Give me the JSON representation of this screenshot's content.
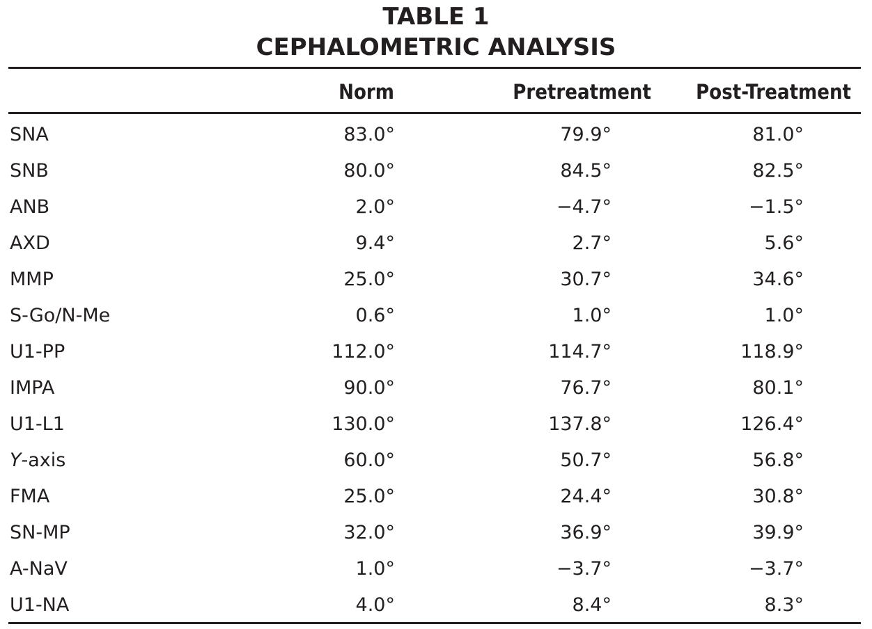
{
  "title_line1": "TABLE 1",
  "title_line2": "CEPHALOMETRIC ANALYSIS",
  "columns": [
    "",
    "Norm",
    "Pretreatment",
    "Post-Treatment"
  ],
  "rows": [
    {
      "label": "SNA",
      "norm": "83.0°",
      "pre": "79.9°",
      "post": "81.0°"
    },
    {
      "label": "SNB",
      "norm": "80.0°",
      "pre": "84.5°",
      "post": "82.5°"
    },
    {
      "label": "ANB",
      "norm": "2.0°",
      "pre": "−4.7°",
      "post": "−1.5°"
    },
    {
      "label": "AXD",
      "norm": "9.4°",
      "pre": "2.7°",
      "post": "5.6°"
    },
    {
      "label": "MMP",
      "norm": "25.0°",
      "pre": "30.7°",
      "post": "34.6°"
    },
    {
      "label": "S-Go/N-Me",
      "norm": "0.6°",
      "pre": "1.0°",
      "post": "1.0°"
    },
    {
      "label": "U1-PP",
      "norm": "112.0°",
      "pre": "114.7°",
      "post": "118.9°"
    },
    {
      "label": "IMPA",
      "norm": "90.0°",
      "pre": "76.7°",
      "post": "80.1°"
    },
    {
      "label": "U1-L1",
      "norm": "130.0°",
      "pre": "137.8°",
      "post": "126.4°"
    },
    {
      "label_italic": "Y",
      "label": "-axis",
      "norm": "60.0°",
      "pre": "50.7°",
      "post": "56.8°"
    },
    {
      "label": "FMA",
      "norm": "25.0°",
      "pre": "24.4°",
      "post": "30.8°"
    },
    {
      "label": "SN-MP",
      "norm": "32.0°",
      "pre": "36.9°",
      "post": "39.9°"
    },
    {
      "label": "A-NaV",
      "norm": "1.0°",
      "pre": "−3.7°",
      "post": "−3.7°"
    },
    {
      "label": "U1-NA",
      "norm": "4.0°",
      "pre": "8.4°",
      "post": "8.3°"
    }
  ]
}
